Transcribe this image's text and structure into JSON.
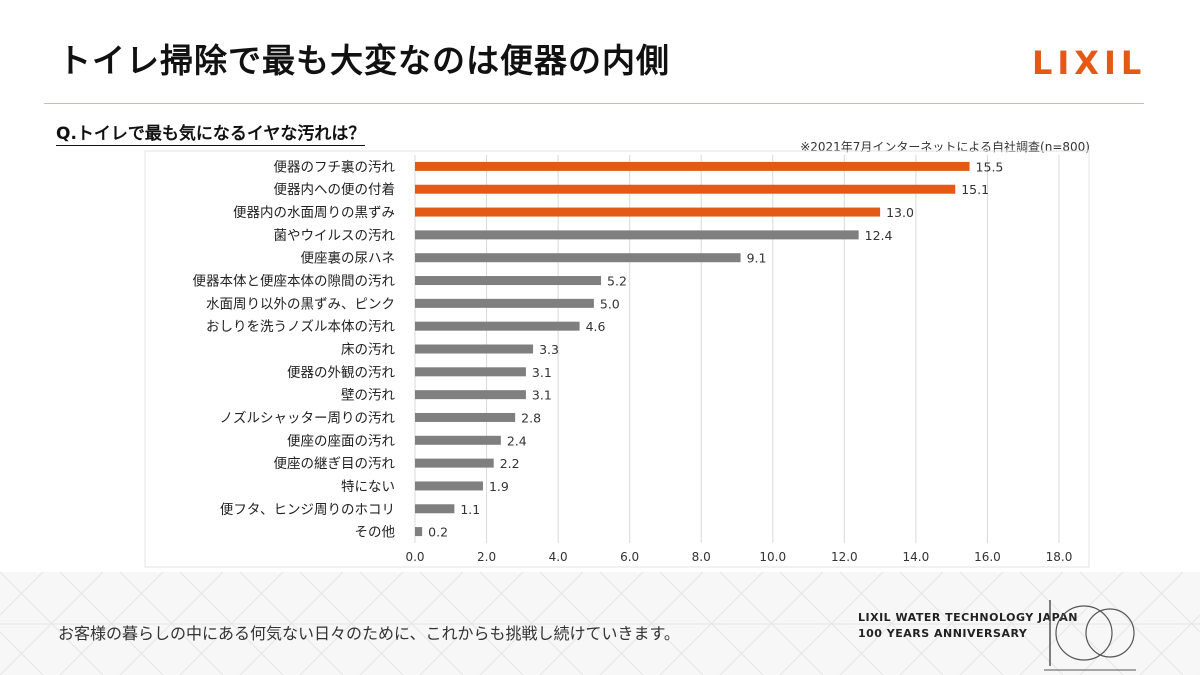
{
  "header": {
    "title": "トイレ掃除で最も大変なのは便器の内側",
    "logo": "LIXIL"
  },
  "question": "Q.トイレで最も気になるイヤな汚れは？",
  "note": "※2021年7月インターネットによる自社調査(n=800)",
  "chart_data": {
    "type": "bar",
    "orientation": "horizontal",
    "categories": [
      "便器のフチ裏の汚れ",
      "便器内への便の付着",
      "便器内の水面周りの黒ずみ",
      "菌やウイルスの汚れ",
      "便座裏の尿ハネ",
      "便器本体と便座本体の隙間の汚れ",
      "水面周り以外の黒ずみ、ピンク",
      "おしりを洗うノズル本体の汚れ",
      "床の汚れ",
      "便器の外観の汚れ",
      "壁の汚れ",
      "ノズルシャッター周りの汚れ",
      "便座の座面の汚れ",
      "便座の継ぎ目の汚れ",
      "特にない",
      "便フタ、ヒンジ周りのホコリ",
      "その他"
    ],
    "values": [
      15.5,
      15.1,
      13.0,
      12.4,
      9.1,
      5.2,
      5.0,
      4.6,
      3.3,
      3.1,
      3.1,
      2.8,
      2.4,
      2.2,
      1.9,
      1.1,
      0.2
    ],
    "value_labels": [
      "15.5",
      "15.1",
      "13.0",
      "12.4",
      "9.1",
      "5.2",
      "5.0",
      "4.6",
      "3.3",
      "3.1",
      "3.1",
      "2.8",
      "2.4",
      "2.2",
      "1.9",
      "1.1",
      "0.2"
    ],
    "xlim": [
      0,
      18
    ],
    "xticks": [
      "0.0",
      "2.0",
      "4.0",
      "6.0",
      "8.0",
      "10.0",
      "12.0",
      "14.0",
      "16.0",
      "18.0"
    ],
    "highlight_count": 3,
    "colors": {
      "highlight": "#e35a17",
      "normal": "#7f7f7f",
      "grid": "#d9d9d9"
    },
    "grid": true
  },
  "footer": {
    "message": "お客様の暮らしの中にある何気ない日々のために、これからも挑戦し続けていきます。",
    "anniversary_line1": "LIXIL WATER TECHNOLOGY JAPAN",
    "anniversary_line2": "100 YEARS ANNIVERSARY"
  }
}
